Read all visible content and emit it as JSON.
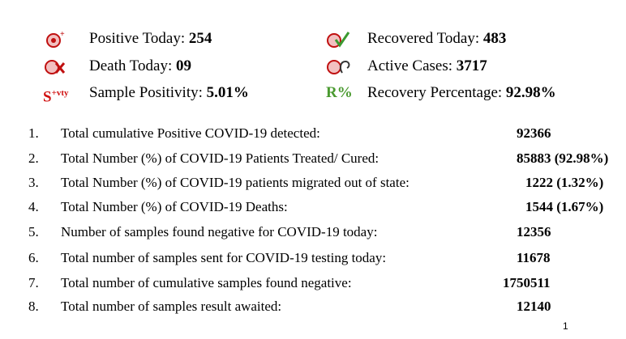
{
  "summary": [
    {
      "label": "Positive Today:",
      "value": "254"
    },
    {
      "label": "Recovered Today:",
      "value": "483"
    },
    {
      "label": "Death Today:",
      "value": "09"
    },
    {
      "label": "Active Cases:",
      "value": "3717"
    },
    {
      "icon": "S",
      "icon_sup": "+vty",
      "label": "Sample Positivity:",
      "value": "5.01%"
    },
    {
      "icon": "R%",
      "label": "Recovery Percentage:",
      "value": "92.98%"
    }
  ],
  "table": {
    "rows": [
      [
        "1.",
        "Total cumulative Positive COVID-19 detected:",
        "92366"
      ],
      [
        "2.",
        "Total Number (%) of COVID-19 Patients Treated/ Cured:",
        "85883 (92.98%)"
      ],
      [
        "3.",
        "Total Number (%) of COVID-19 patients migrated out of state:",
        "1222 (1.32%)"
      ],
      [
        "4.",
        "Total Number (%) of COVID-19 Deaths:",
        "1544 (1.67%)"
      ],
      [
        "5.",
        "Number of samples found negative for COVID-19 today:",
        "12356"
      ],
      [
        "6.",
        "Total number of samples sent for COVID-19 testing today:",
        "11678"
      ],
      [
        "7.",
        "Total number of cumulative samples found negative:",
        "1750511"
      ],
      [
        "8.",
        "Total number of samples result awaited:",
        "12140"
      ]
    ]
  },
  "footer": {
    "page_number": "1"
  }
}
